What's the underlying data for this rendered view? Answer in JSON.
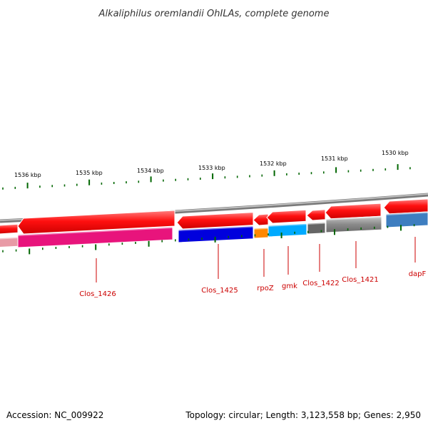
{
  "title": "Alkaliphilus oremlandii OhILAs, complete genome",
  "scale_labels": [
    "1536 kbp",
    "1535 kbp",
    "1534 kbp",
    "1533 kbp",
    "1532 kbp",
    "1531 kbp",
    "1530 kbp"
  ],
  "gene_labels": [
    "Clos_1426",
    "Clos_1425",
    "rpoZ",
    "gmk",
    "Clos_1422",
    "Clos_1421",
    "dapF"
  ],
  "footer": {
    "accession": "Accession: NC_009922",
    "summary": "Topology: circular; Length: 3,123,558 bp; Genes: 2,950"
  },
  "colors": {
    "forward_strand": "#ff0000",
    "backbone": "#999999",
    "label": "#cc0000",
    "ticks": "#006600",
    "genes": {
      "Clos_1426": "#e8147c",
      "Clos_1425": "#0000dd",
      "rpoZ": "#ff8800",
      "gmk": "#00aaff",
      "Clos_1422": "#666666",
      "Clos_1421": "#6e6e6e",
      "dapF": "#3e7ec0"
    }
  }
}
